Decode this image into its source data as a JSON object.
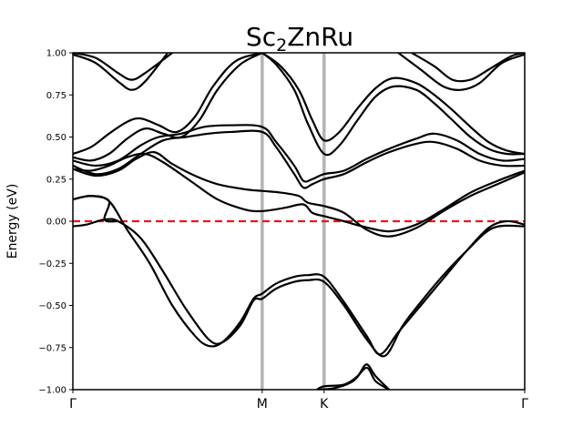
{
  "chart_data": {
    "type": "line",
    "title_main": "Sc",
    "title_sub": "2",
    "title_rest": "ZnRu",
    "xlabel": "",
    "ylabel": "Energy (eV)",
    "xlim": [
      0,
      1
    ],
    "ylim": [
      -1.0,
      1.0
    ],
    "yticks": [
      -1.0,
      -0.75,
      -0.5,
      -0.25,
      0.0,
      0.25,
      0.5,
      0.75,
      1.0
    ],
    "ytick_labels": [
      "−1.00",
      "−0.75",
      "−0.50",
      "−0.25",
      "0.00",
      "0.25",
      "0.50",
      "0.75",
      "1.00"
    ],
    "kpoints": [
      {
        "label": "Γ",
        "x": 0.0
      },
      {
        "label": "M",
        "x": 0.419
      },
      {
        "label": "K",
        "x": 0.556
      },
      {
        "label": "Γ",
        "x": 1.0
      }
    ],
    "fermi_level": 0.0,
    "fermi_color": "#e8161b",
    "kline_color": "#b5b5b5",
    "band_color": "#000000",
    "series": [
      {
        "values": [
          [
            0.0,
            -0.03
          ],
          [
            0.03,
            -0.02
          ],
          [
            0.07,
            0.01
          ],
          [
            0.1,
            0.0
          ],
          [
            0.15,
            -0.1
          ],
          [
            0.2,
            -0.3
          ],
          [
            0.25,
            -0.52
          ],
          [
            0.3,
            -0.7
          ],
          [
            0.33,
            -0.72
          ],
          [
            0.37,
            -0.62
          ],
          [
            0.4,
            -0.47
          ],
          [
            0.419,
            -0.46
          ],
          [
            0.45,
            -0.4
          ],
          [
            0.49,
            -0.36
          ],
          [
            0.52,
            -0.35
          ],
          [
            0.556,
            -0.36
          ],
          [
            0.6,
            -0.5
          ],
          [
            0.65,
            -0.7
          ],
          [
            0.69,
            -0.8
          ],
          [
            0.73,
            -0.62
          ],
          [
            0.77,
            -0.48
          ],
          [
            0.82,
            -0.32
          ],
          [
            0.87,
            -0.18
          ],
          [
            0.93,
            -0.04
          ],
          [
            1.0,
            -0.03
          ]
        ]
      },
      {
        "values": [
          [
            0.0,
            0.13
          ],
          [
            0.04,
            0.15
          ],
          [
            0.08,
            0.12
          ],
          [
            0.12,
            -0.05
          ],
          [
            0.17,
            -0.25
          ],
          [
            0.22,
            -0.5
          ],
          [
            0.27,
            -0.68
          ],
          [
            0.3,
            -0.74
          ],
          [
            0.33,
            -0.72
          ],
          [
            0.37,
            -0.6
          ],
          [
            0.4,
            -0.46
          ],
          [
            0.419,
            -0.43
          ],
          [
            0.45,
            -0.37
          ],
          [
            0.49,
            -0.33
          ],
          [
            0.52,
            -0.32
          ],
          [
            0.556,
            -0.33
          ],
          [
            0.6,
            -0.48
          ],
          [
            0.65,
            -0.68
          ],
          [
            0.68,
            -0.79
          ],
          [
            0.72,
            -0.66
          ],
          [
            0.77,
            -0.5
          ],
          [
            0.82,
            -0.34
          ],
          [
            0.87,
            -0.18
          ],
          [
            0.92,
            -0.04
          ],
          [
            0.96,
            0.0
          ],
          [
            1.0,
            -0.02
          ]
        ]
      },
      {
        "values": [
          [
            0.0,
            0.13
          ],
          [
            0.04,
            0.15
          ],
          [
            0.08,
            0.12
          ],
          [
            0.07,
            0.01
          ],
          [
            0.1,
            0.0
          ]
        ]
      },
      {
        "values": [
          [
            0.0,
            0.31
          ],
          [
            0.04,
            0.3
          ],
          [
            0.08,
            0.33
          ],
          [
            0.12,
            0.38
          ],
          [
            0.16,
            0.4
          ],
          [
            0.2,
            0.35
          ],
          [
            0.26,
            0.24
          ],
          [
            0.32,
            0.13
          ],
          [
            0.38,
            0.07
          ],
          [
            0.419,
            0.06
          ],
          [
            0.47,
            0.08
          ],
          [
            0.51,
            0.1
          ],
          [
            0.53,
            0.05
          ],
          [
            0.556,
            0.03
          ],
          [
            0.6,
            0.0
          ],
          [
            0.64,
            -0.03
          ],
          [
            0.7,
            -0.06
          ],
          [
            0.76,
            -0.02
          ],
          [
            0.82,
            0.07
          ],
          [
            0.88,
            0.17
          ],
          [
            0.94,
            0.24
          ],
          [
            1.0,
            0.3
          ]
        ]
      },
      {
        "values": [
          [
            0.0,
            0.31
          ],
          [
            0.05,
            0.27
          ],
          [
            0.1,
            0.3
          ],
          [
            0.14,
            0.37
          ],
          [
            0.18,
            0.41
          ],
          [
            0.22,
            0.34
          ],
          [
            0.27,
            0.27
          ],
          [
            0.32,
            0.22
          ],
          [
            0.38,
            0.19
          ],
          [
            0.419,
            0.18
          ],
          [
            0.46,
            0.17
          ],
          [
            0.5,
            0.15
          ],
          [
            0.52,
            0.11
          ],
          [
            0.556,
            0.09
          ],
          [
            0.6,
            0.05
          ],
          [
            0.65,
            -0.05
          ],
          [
            0.7,
            -0.09
          ],
          [
            0.76,
            -0.04
          ],
          [
            0.82,
            0.06
          ],
          [
            0.88,
            0.15
          ],
          [
            0.94,
            0.22
          ],
          [
            1.0,
            0.29
          ]
        ]
      },
      {
        "values": [
          [
            0.0,
            0.33
          ],
          [
            0.05,
            0.28
          ],
          [
            0.1,
            0.31
          ],
          [
            0.15,
            0.4
          ],
          [
            0.2,
            0.48
          ],
          [
            0.25,
            0.5
          ],
          [
            0.3,
            0.52
          ],
          [
            0.35,
            0.53
          ],
          [
            0.419,
            0.53
          ],
          [
            0.45,
            0.44
          ],
          [
            0.49,
            0.28
          ],
          [
            0.51,
            0.2
          ],
          [
            0.53,
            0.22
          ],
          [
            0.556,
            0.25
          ],
          [
            0.6,
            0.28
          ],
          [
            0.65,
            0.35
          ],
          [
            0.7,
            0.41
          ],
          [
            0.76,
            0.46
          ],
          [
            0.8,
            0.47
          ],
          [
            0.85,
            0.43
          ],
          [
            0.9,
            0.36
          ],
          [
            0.95,
            0.33
          ],
          [
            1.0,
            0.33
          ]
        ]
      },
      {
        "values": [
          [
            0.0,
            0.36
          ],
          [
            0.05,
            0.33
          ],
          [
            0.1,
            0.36
          ],
          [
            0.15,
            0.45
          ],
          [
            0.19,
            0.5
          ],
          [
            0.24,
            0.52
          ],
          [
            0.29,
            0.56
          ],
          [
            0.35,
            0.57
          ],
          [
            0.419,
            0.56
          ],
          [
            0.45,
            0.47
          ],
          [
            0.49,
            0.33
          ],
          [
            0.51,
            0.24
          ],
          [
            0.53,
            0.25
          ],
          [
            0.556,
            0.28
          ],
          [
            0.6,
            0.3
          ],
          [
            0.65,
            0.37
          ],
          [
            0.7,
            0.43
          ],
          [
            0.76,
            0.49
          ],
          [
            0.8,
            0.52
          ],
          [
            0.85,
            0.48
          ],
          [
            0.9,
            0.4
          ],
          [
            0.95,
            0.36
          ],
          [
            1.0,
            0.37
          ]
        ]
      },
      {
        "values": [
          [
            0.0,
            0.38
          ],
          [
            0.04,
            0.36
          ],
          [
            0.08,
            0.4
          ],
          [
            0.12,
            0.49
          ],
          [
            0.16,
            0.55
          ],
          [
            0.2,
            0.52
          ],
          [
            0.24,
            0.5
          ],
          [
            0.28,
            0.6
          ],
          [
            0.32,
            0.78
          ],
          [
            0.37,
            0.93
          ],
          [
            0.419,
            1.0
          ]
        ]
      },
      {
        "values": [
          [
            0.0,
            0.4
          ],
          [
            0.04,
            0.44
          ],
          [
            0.08,
            0.52
          ],
          [
            0.12,
            0.59
          ],
          [
            0.15,
            0.61
          ],
          [
            0.19,
            0.57
          ],
          [
            0.23,
            0.53
          ],
          [
            0.27,
            0.62
          ],
          [
            0.31,
            0.8
          ],
          [
            0.36,
            0.95
          ],
          [
            0.419,
            1.0
          ]
        ]
      },
      {
        "values": [
          [
            0.419,
            1.0
          ],
          [
            0.45,
            0.93
          ],
          [
            0.49,
            0.78
          ],
          [
            0.52,
            0.58
          ],
          [
            0.556,
            0.4
          ],
          [
            0.59,
            0.45
          ],
          [
            0.63,
            0.6
          ],
          [
            0.67,
            0.74
          ],
          [
            0.71,
            0.8
          ],
          [
            0.76,
            0.78
          ],
          [
            0.8,
            0.7
          ],
          [
            0.84,
            0.6
          ],
          [
            0.88,
            0.5
          ],
          [
            0.92,
            0.43
          ],
          [
            0.96,
            0.4
          ],
          [
            1.0,
            0.4
          ]
        ]
      },
      {
        "values": [
          [
            0.419,
            1.0
          ],
          [
            0.46,
            0.92
          ],
          [
            0.5,
            0.78
          ],
          [
            0.53,
            0.6
          ],
          [
            0.556,
            0.48
          ],
          [
            0.59,
            0.53
          ],
          [
            0.63,
            0.67
          ],
          [
            0.67,
            0.79
          ],
          [
            0.71,
            0.85
          ],
          [
            0.76,
            0.82
          ],
          [
            0.8,
            0.75
          ],
          [
            0.84,
            0.66
          ],
          [
            0.88,
            0.56
          ],
          [
            0.92,
            0.47
          ],
          [
            0.96,
            0.42
          ],
          [
            1.0,
            0.4
          ]
        ]
      },
      {
        "values": [
          [
            0.0,
            1.0
          ],
          [
            0.05,
            0.97
          ],
          [
            0.1,
            0.88
          ],
          [
            0.13,
            0.84
          ],
          [
            0.16,
            0.88
          ],
          [
            0.22,
            1.0
          ]
        ]
      },
      {
        "values": [
          [
            0.0,
            0.99
          ],
          [
            0.05,
            0.94
          ],
          [
            0.1,
            0.83
          ],
          [
            0.13,
            0.78
          ],
          [
            0.16,
            0.83
          ],
          [
            0.21,
            1.0
          ]
        ]
      },
      {
        "values": [
          [
            0.75,
            1.0
          ],
          [
            0.8,
            0.92
          ],
          [
            0.84,
            0.84
          ],
          [
            0.88,
            0.84
          ],
          [
            0.92,
            0.9
          ],
          [
            0.97,
            0.98
          ],
          [
            1.0,
            1.0
          ]
        ]
      },
      {
        "values": [
          [
            0.72,
            1.0
          ],
          [
            0.77,
            0.9
          ],
          [
            0.82,
            0.8
          ],
          [
            0.86,
            0.78
          ],
          [
            0.9,
            0.82
          ],
          [
            0.95,
            0.94
          ],
          [
            1.0,
            0.99
          ]
        ]
      },
      {
        "values": [
          [
            0.54,
            -1.0
          ],
          [
            0.556,
            -0.98
          ],
          [
            0.6,
            -0.97
          ],
          [
            0.63,
            -0.92
          ],
          [
            0.65,
            -0.85
          ],
          [
            0.67,
            -0.92
          ],
          [
            0.7,
            -1.0
          ]
        ]
      },
      {
        "values": [
          [
            0.54,
            -1.0
          ],
          [
            0.58,
            -0.99
          ],
          [
            0.62,
            -0.95
          ],
          [
            0.65,
            -0.87
          ],
          [
            0.67,
            -0.95
          ],
          [
            0.7,
            -1.0
          ]
        ]
      }
    ]
  }
}
